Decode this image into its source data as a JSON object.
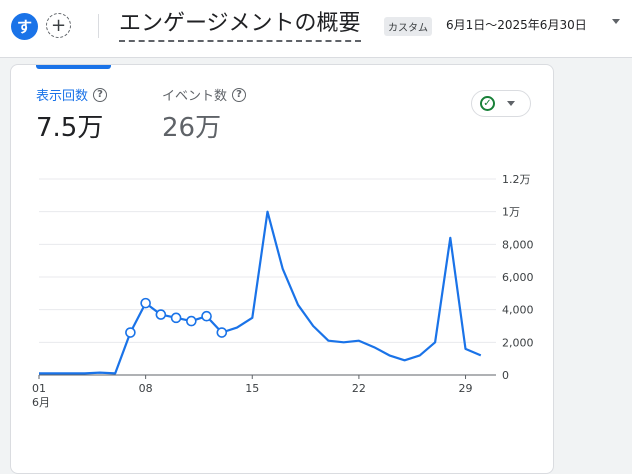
{
  "header": {
    "avatar_letter": "す",
    "add_symbol": "+",
    "title": "エンゲージメントの概要",
    "date_chip": "カスタム",
    "date_range": "6月1日～2025年6月30日"
  },
  "metrics": [
    {
      "label": "表示回数",
      "value": "7.5万"
    },
    {
      "label": "イベント数",
      "value": "26万"
    }
  ],
  "icons": {
    "avatar": "avatar",
    "add": "plus-icon",
    "help": "help-circle-icon",
    "status": "check-circle-icon",
    "caret": "chevron-down-icon"
  },
  "colors": {
    "accent": "#1a73e8",
    "status_green": "#188038"
  },
  "chart_data": {
    "type": "line",
    "series": [
      {
        "x": [
          1,
          2,
          3,
          4,
          5,
          6,
          7,
          8,
          9,
          10,
          11,
          12,
          13,
          14,
          15,
          16,
          17,
          18,
          19,
          20,
          21,
          22,
          23,
          24,
          25,
          26,
          27,
          28,
          29,
          30
        ],
        "values": [
          100,
          100,
          100,
          100,
          150,
          100,
          2600,
          4400,
          3700,
          3500,
          3300,
          3600,
          2600,
          2900,
          3500,
          10000,
          6500,
          4300,
          3000,
          2100,
          2000,
          2100,
          1700,
          1200,
          900,
          1200,
          2000,
          8400,
          1600,
          1200
        ],
        "marked_x": [
          7,
          8,
          9,
          10,
          11,
          12,
          13
        ]
      }
    ],
    "x_ticks": [
      {
        "x": 1,
        "label": "01",
        "sublabel": "6月"
      },
      {
        "x": 8,
        "label": "08"
      },
      {
        "x": 15,
        "label": "15"
      },
      {
        "x": 22,
        "label": "22"
      },
      {
        "x": 29,
        "label": "29"
      }
    ],
    "y_ticks": [
      {
        "value": 0,
        "label": "0"
      },
      {
        "value": 2000,
        "label": "2,000"
      },
      {
        "value": 4000,
        "label": "4,000"
      },
      {
        "value": 6000,
        "label": "6,000"
      },
      {
        "value": 8000,
        "label": "8,000"
      },
      {
        "value": 10000,
        "label": "1万"
      },
      {
        "value": 12000,
        "label": "1.2万"
      }
    ],
    "ylim": [
      0,
      12000
    ],
    "grid": true
  }
}
